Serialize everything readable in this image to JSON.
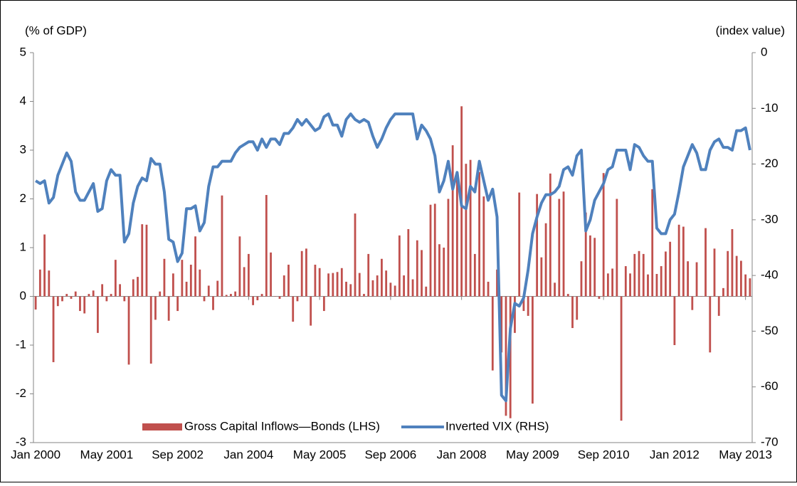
{
  "chart_data": {
    "type": "bar_line",
    "y_label": "(% of GDP)",
    "y2_label": "(index value)",
    "categories": [
      "Jan 2000",
      null,
      null,
      null,
      null,
      null,
      null,
      null,
      null,
      null,
      null,
      null,
      null,
      null,
      null,
      null,
      "May 2001",
      null,
      null,
      null,
      null,
      null,
      null,
      null,
      null,
      null,
      null,
      null,
      null,
      null,
      null,
      null,
      "Sep 2002",
      null,
      null,
      null,
      null,
      null,
      null,
      null,
      null,
      null,
      null,
      null,
      null,
      null,
      null,
      null,
      "Jan 2004",
      null,
      null,
      null,
      null,
      null,
      null,
      null,
      null,
      null,
      null,
      null,
      null,
      null,
      null,
      null,
      "May 2005",
      null,
      null,
      null,
      null,
      null,
      null,
      null,
      null,
      null,
      null,
      null,
      null,
      null,
      null,
      null,
      "Sep 2006",
      null,
      null,
      null,
      null,
      null,
      null,
      null,
      null,
      null,
      null,
      null,
      null,
      null,
      null,
      null,
      "Jan 2008",
      null,
      null,
      null,
      null,
      null,
      null,
      null,
      null,
      null,
      null,
      null,
      null,
      null,
      null,
      null,
      "May 2009",
      null,
      null,
      null,
      null,
      null,
      null,
      null,
      null,
      null,
      null,
      null,
      null,
      null,
      null,
      null,
      "Sep 2010",
      null,
      null,
      null,
      null,
      null,
      null,
      null,
      null,
      null,
      null,
      null,
      null,
      null,
      null,
      null,
      "Jan 2012",
      null,
      null,
      null,
      null,
      null,
      null,
      null,
      null,
      null,
      null,
      null,
      null,
      null,
      null,
      null,
      "May 2013",
      null
    ],
    "series": [
      {
        "name": "Gross Capital Inflows—Bonds (LHS)",
        "type": "bar",
        "color": "#c0504d",
        "axis": "y",
        "values": [
          -0.27,
          0.55,
          1.27,
          0.53,
          -1.35,
          -0.2,
          -0.1,
          0.05,
          -0.05,
          0.1,
          -0.3,
          -0.35,
          0.05,
          0.12,
          -0.75,
          0.25,
          -0.1,
          0.05,
          0.75,
          0.25,
          -0.1,
          -1.4,
          0.35,
          0.4,
          1.48,
          1.47,
          -1.38,
          -0.48,
          0.1,
          0.77,
          -0.5,
          0.47,
          -0.3,
          0.75,
          0.3,
          0.65,
          1.23,
          0.55,
          -0.1,
          0.22,
          -0.28,
          0.32,
          2.07,
          0.03,
          0.05,
          0.1,
          1.23,
          0.6,
          0.87,
          -0.18,
          -0.08,
          0.05,
          2.08,
          0.9,
          0,
          -0.05,
          0.43,
          0.65,
          -0.52,
          -0.1,
          0.93,
          0.98,
          -0.6,
          0.65,
          0.58,
          -0.3,
          0.47,
          0.48,
          0.5,
          0.58,
          0.3,
          0.25,
          1.7,
          0.48,
          0.05,
          0.87,
          0.33,
          0.43,
          0.77,
          0.53,
          0.28,
          0.22,
          1.25,
          0.43,
          1.38,
          0.35,
          1.15,
          0.95,
          0.2,
          1.88,
          1.9,
          1.07,
          1,
          2,
          3.1,
          2.4,
          3.9,
          2.72,
          2.8,
          0.87,
          2.55,
          2.05,
          0.3,
          -1.52,
          0.55,
          -1.15,
          -2.45,
          -2.5,
          -0.75,
          2.13,
          -0.3,
          -0.4,
          -2.2,
          2.1,
          0.8,
          1.5,
          2.52,
          0.28,
          2,
          2.15,
          0.05,
          -0.65,
          -0.48,
          0.72,
          1.72,
          1.25,
          1.2,
          -0.05,
          2.53,
          0.47,
          0.57,
          2,
          -2.55,
          0.62,
          0.47,
          0.87,
          0.93,
          0.87,
          0.45,
          2.2,
          0.46,
          0.62,
          0.92,
          1.12,
          -1,
          1.47,
          1.43,
          0.72,
          -0.28,
          0.7,
          0,
          1.4,
          -1.15,
          0.98,
          -0.4,
          0.17,
          0.93,
          1.38,
          0.83,
          0.73,
          0.45,
          0.37
        ]
      },
      {
        "name": "Inverted VIX (RHS)",
        "type": "line",
        "color": "#4f81bd",
        "axis": "y2",
        "values": [
          -23,
          -23.5,
          -23,
          -27,
          -26,
          -22,
          -20,
          -18,
          -19.5,
          -25,
          -26.5,
          -26.5,
          -25,
          -23.5,
          -28.5,
          -28,
          -23,
          -21,
          -22,
          -22,
          -34,
          -32.5,
          -27,
          -24,
          -22.5,
          -23,
          -19,
          -20,
          -20,
          -25,
          -33.5,
          -34,
          -37.5,
          -36,
          -28,
          -28,
          -27.5,
          -32,
          -30.5,
          -24,
          -20.5,
          -20.5,
          -19.5,
          -19.5,
          -19.5,
          -18,
          -17,
          -16.5,
          -16,
          -16,
          -17.5,
          -15.5,
          -17,
          -15.5,
          -15.5,
          -16.5,
          -14.5,
          -14.5,
          -13.5,
          -12,
          -13,
          -12,
          -13,
          -14,
          -13.5,
          -11.5,
          -11,
          -13,
          -13,
          -15,
          -12,
          -11,
          -12,
          -12.5,
          -12,
          -12.5,
          -15,
          -17,
          -15.5,
          -13.5,
          -12,
          -11,
          -11,
          -11,
          -11,
          -11,
          -15.5,
          -13,
          -14,
          -15.5,
          -18.5,
          -25,
          -23,
          -19.5,
          -24.5,
          -21.5,
          -27.5,
          -28,
          -24,
          -25,
          -19.5,
          -23,
          -26.5,
          -24.5,
          -29.5,
          -61.5,
          -62.5,
          -49.5,
          -45,
          -45.5,
          -44,
          -39,
          -32.5,
          -29.5,
          -27,
          -25.5,
          -25.5,
          -25,
          -24,
          -21,
          -20.5,
          -22,
          -18.5,
          -17.5,
          -32,
          -30,
          -26.5,
          -25,
          -23.5,
          -21,
          -20.5,
          -17.5,
          -17.5,
          -17.5,
          -21,
          -16.5,
          -17,
          -18.5,
          -19.5,
          -19.5,
          -31.5,
          -32.5,
          -32.5,
          -30,
          -29,
          -25,
          -20.5,
          -18.5,
          -16.5,
          -18,
          -21,
          -21,
          -17.5,
          -16,
          -15.5,
          -17,
          -17,
          -17.5,
          -14,
          -14,
          -13.5,
          -17.5
        ]
      }
    ],
    "ylim": [
      -3,
      5
    ],
    "yticks": [
      -3,
      -2,
      -1,
      0,
      1,
      2,
      3,
      4,
      5
    ],
    "y2lim": [
      -70,
      0
    ],
    "y2ticks": [
      -70,
      -60,
      -50,
      -40,
      -30,
      -20,
      -10,
      0
    ],
    "legend_position": "lower center"
  }
}
